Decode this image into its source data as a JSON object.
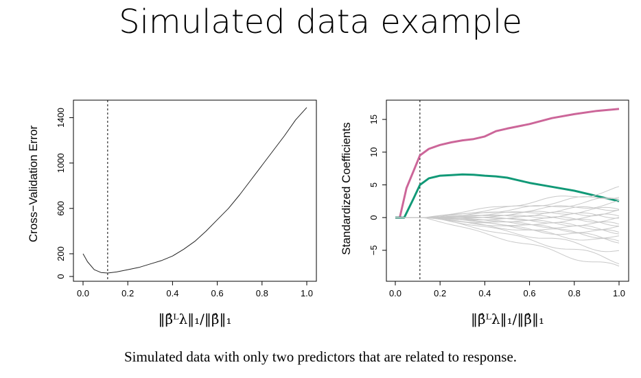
{
  "slide": {
    "title": "Simulated data example",
    "caption": "Simulated data with only two predictors that are related to response."
  },
  "chart_data": [
    {
      "type": "line",
      "xlabel": "‖β̂ᴸλ‖₁/‖β̂‖₁",
      "ylabel": "Cross−Validation Error",
      "xlim": [
        0,
        1
      ],
      "ylim": [
        0,
        1500
      ],
      "xticks": [
        0.0,
        0.2,
        0.4,
        0.6,
        0.8,
        1.0
      ],
      "xtick_labels": [
        "0.0",
        "0.2",
        "0.4",
        "0.6",
        "0.8",
        "1.0"
      ],
      "yticks": [
        0,
        200,
        600,
        1000,
        1400
      ],
      "ytick_labels": [
        "0",
        "200",
        "600",
        "1000",
        "1400"
      ],
      "vline": 0.11,
      "grid": false,
      "series": [
        {
          "color": "#222222",
          "x": [
            0.0,
            0.02,
            0.05,
            0.08,
            0.11,
            0.15,
            0.2,
            0.25,
            0.3,
            0.35,
            0.4,
            0.45,
            0.5,
            0.55,
            0.6,
            0.65,
            0.7,
            0.75,
            0.8,
            0.85,
            0.9,
            0.95,
            1.0
          ],
          "y": [
            200,
            130,
            60,
            35,
            30,
            40,
            60,
            80,
            110,
            140,
            180,
            240,
            310,
            400,
            500,
            600,
            720,
            850,
            980,
            1110,
            1240,
            1380,
            1490
          ]
        }
      ]
    },
    {
      "type": "line",
      "xlabel": "‖β̂ᴸλ‖₁/‖β̂‖₁",
      "ylabel": "Standardized Coefficients",
      "xlim": [
        0,
        1
      ],
      "ylim": [
        -9,
        17
      ],
      "xticks": [
        0.0,
        0.2,
        0.4,
        0.6,
        0.8,
        1.0
      ],
      "xtick_labels": [
        "0.0",
        "0.2",
        "0.4",
        "0.6",
        "0.8",
        "1.0"
      ],
      "yticks": [
        -5,
        0,
        5,
        10,
        15
      ],
      "ytick_labels": [
        "−5",
        "0",
        "5",
        "10",
        "15"
      ],
      "vline": 0.11,
      "grid": false,
      "series": [
        {
          "color": "#cc6699",
          "x": [
            0.0,
            0.02,
            0.05,
            0.08,
            0.11,
            0.15,
            0.2,
            0.25,
            0.3,
            0.35,
            0.4,
            0.45,
            0.5,
            0.6,
            0.7,
            0.8,
            0.9,
            1.0
          ],
          "y": [
            0.0,
            0.0,
            4.5,
            7.0,
            9.5,
            10.5,
            11.1,
            11.5,
            11.8,
            12.0,
            12.4,
            13.2,
            13.6,
            14.3,
            15.2,
            15.8,
            16.3,
            16.6
          ]
        },
        {
          "color": "#119977",
          "x": [
            0.0,
            0.04,
            0.08,
            0.11,
            0.15,
            0.2,
            0.25,
            0.3,
            0.35,
            0.4,
            0.45,
            0.5,
            0.55,
            0.6,
            0.7,
            0.8,
            0.9,
            1.0
          ],
          "y": [
            0.0,
            0.0,
            2.8,
            5.0,
            6.0,
            6.4,
            6.5,
            6.6,
            6.55,
            6.4,
            6.3,
            6.1,
            5.7,
            5.3,
            4.7,
            4.1,
            3.3,
            2.5
          ]
        },
        {
          "color": "#c8c8c8",
          "name": "",
          "bundle": [
            4.3,
            3.5,
            2.8,
            2.2,
            1.6,
            1.2,
            0.8,
            0.4,
            0.1,
            -0.3,
            -0.8,
            -1.2,
            -1.6,
            -2.0,
            -2.5,
            -3.0,
            -3.4,
            -3.9,
            -5.2,
            -6.6,
            -7.8
          ]
        }
      ]
    }
  ]
}
